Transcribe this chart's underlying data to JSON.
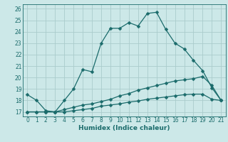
{
  "xlabel": "Humidex (Indice chaleur)",
  "background_color": "#cce8e8",
  "grid_color": "#aacccc",
  "line_color": "#1a6b6b",
  "xlim": [
    -0.5,
    21.5
  ],
  "ylim": [
    16.6,
    26.4
  ],
  "xticks": [
    0,
    1,
    2,
    3,
    4,
    5,
    6,
    7,
    8,
    9,
    10,
    11,
    12,
    13,
    14,
    15,
    16,
    17,
    18,
    19,
    20,
    21
  ],
  "yticks": [
    17,
    18,
    19,
    20,
    21,
    22,
    23,
    24,
    25,
    26
  ],
  "line1_x": [
    0,
    1,
    2,
    3,
    4,
    5,
    6,
    7,
    8,
    9,
    10,
    11,
    12,
    13,
    14,
    15,
    16,
    17,
    18,
    19,
    20,
    21
  ],
  "line1_y": [
    18.5,
    18.0,
    17.1,
    17.0,
    18.0,
    19.0,
    20.7,
    20.5,
    23.0,
    24.3,
    24.3,
    24.8,
    24.5,
    25.6,
    25.7,
    24.2,
    23.0,
    22.5,
    21.5,
    20.6,
    19.1,
    18.0
  ],
  "line2_x": [
    0,
    1,
    2,
    3,
    4,
    5,
    6,
    7,
    8,
    9,
    10,
    11,
    12,
    13,
    14,
    15,
    16,
    17,
    18,
    19,
    20,
    21
  ],
  "line2_y": [
    17.0,
    17.0,
    17.0,
    17.0,
    17.2,
    17.4,
    17.6,
    17.7,
    17.9,
    18.1,
    18.4,
    18.6,
    18.9,
    19.1,
    19.3,
    19.5,
    19.7,
    19.8,
    19.9,
    20.1,
    19.3,
    18.0
  ],
  "line3_x": [
    0,
    1,
    2,
    3,
    4,
    5,
    6,
    7,
    8,
    9,
    10,
    11,
    12,
    13,
    14,
    15,
    16,
    17,
    18,
    19,
    20,
    21
  ],
  "line3_y": [
    17.0,
    17.0,
    17.0,
    17.0,
    17.0,
    17.1,
    17.2,
    17.3,
    17.5,
    17.6,
    17.7,
    17.85,
    17.95,
    18.1,
    18.2,
    18.3,
    18.4,
    18.5,
    18.55,
    18.55,
    18.1,
    18.0
  ],
  "marker": "D",
  "markersize": 2.5
}
